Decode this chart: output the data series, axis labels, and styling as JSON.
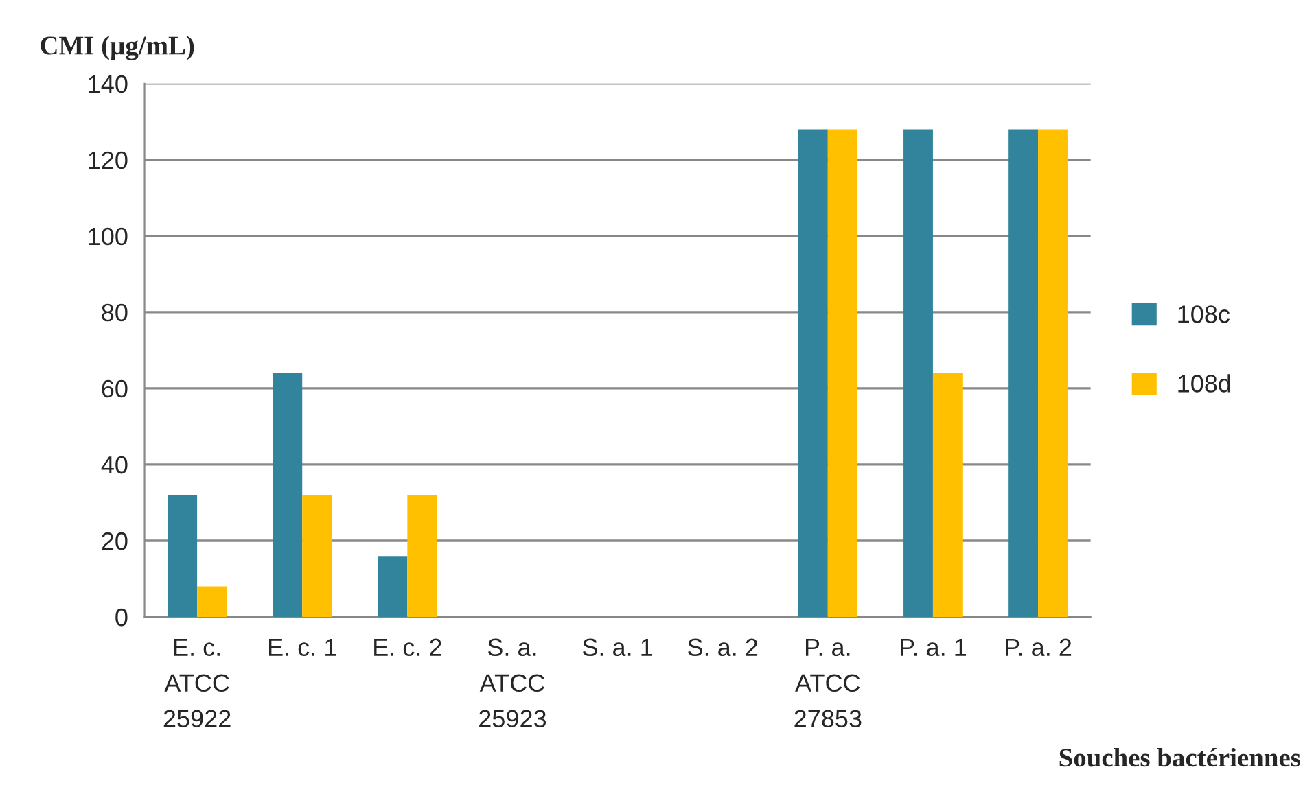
{
  "chart_data": {
    "type": "bar",
    "ylabel": "CMI (µg/mL)",
    "xlabel": "Souches bactériennes",
    "categories": [
      "E. c.\nATCC\n25922",
      "E. c. 1",
      "E. c. 2",
      "S. a.\nATCC\n25923",
      "S. a. 1",
      "S. a. 2",
      "P. a.\nATCC\n27853",
      "P. a. 1",
      "P. a. 2"
    ],
    "series": [
      {
        "name": "108c",
        "color": "#31849b",
        "values": [
          32,
          64,
          16,
          0,
          0,
          0,
          128,
          128,
          128
        ]
      },
      {
        "name": "108d",
        "color": "#ffc000",
        "values": [
          8,
          32,
          32,
          0,
          0,
          0,
          128,
          64,
          128
        ]
      }
    ],
    "ylim": [
      0,
      140
    ],
    "yticks": [
      0,
      20,
      40,
      60,
      80,
      100,
      120,
      140
    ],
    "grid": "y",
    "legend": "right"
  }
}
